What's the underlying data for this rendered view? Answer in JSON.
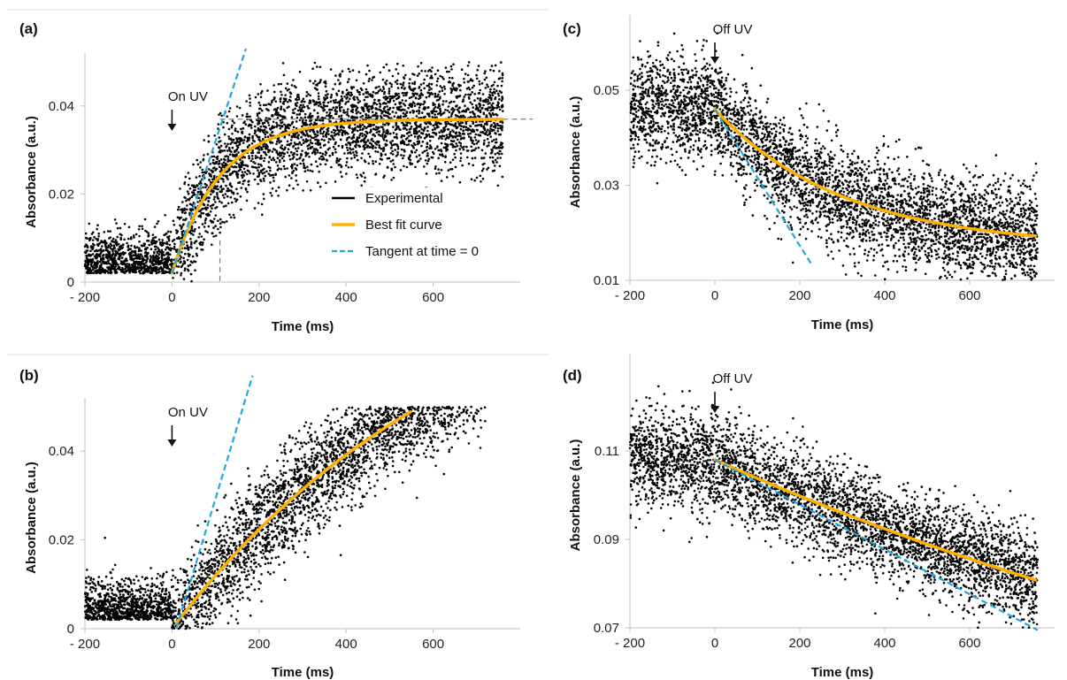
{
  "chart_data": [
    {
      "panel": "(a)",
      "type": "scatter",
      "xlabel": "Time (ms)",
      "ylabel": "Absorbance (a.u.)",
      "xlim": [
        -200,
        800
      ],
      "ylim": [
        0,
        0.05
      ],
      "xticks": [
        "- 200",
        "0",
        "200",
        "400",
        "600"
      ],
      "xtick_values": [
        -200,
        0,
        200,
        400,
        600
      ],
      "yticks": [
        "0",
        "0.02",
        "0.04"
      ],
      "ytick_values": [
        0,
        0.02,
        0.04
      ],
      "annotation": {
        "text": "On UV",
        "x": 0
      },
      "legend": {
        "placement": "right-center",
        "entries": [
          "Experimental",
          "Best fit curve",
          "Tangent at time = 0"
        ]
      },
      "guide_lines": {
        "plateau_y": 0.037,
        "tau_x": 110
      },
      "series": [
        {
          "name": "Experimental",
          "kind": "scatter",
          "color": "#000000",
          "baseline": 0.002,
          "noise": 0.006
        },
        {
          "name": "Best fit curve",
          "kind": "line",
          "color": "#FFB000",
          "model": "rise",
          "A": 0.035,
          "tau": 110,
          "y0": 0.002,
          "x_range": [
            0,
            760
          ]
        },
        {
          "name": "Tangent at time = 0",
          "kind": "line",
          "dashed": true,
          "color": "#1FA5E0",
          "x_range": [
            0,
            170
          ],
          "y_range": [
            0.002,
            0.053
          ]
        }
      ]
    },
    {
      "panel": "(b)",
      "type": "scatter",
      "xlabel": "Time (ms)",
      "ylabel": "Absorbance (a.u.)",
      "xlim": [
        -200,
        800
      ],
      "ylim": [
        0,
        0.05
      ],
      "xticks": [
        "- 200",
        "0",
        "200",
        "400",
        "600"
      ],
      "xtick_values": [
        -200,
        0,
        200,
        400,
        600
      ],
      "yticks": [
        "0",
        "0.02",
        "0.04"
      ],
      "ytick_values": [
        0,
        0.02,
        0.04
      ],
      "annotation": {
        "text": "On UV",
        "x": 0
      },
      "series": [
        {
          "name": "Experimental",
          "kind": "scatter",
          "color": "#000000",
          "baseline": 0.002,
          "noise": 0.006,
          "x_max": 720
        },
        {
          "name": "Best fit curve",
          "kind": "line",
          "color": "#FFB000",
          "model": "rise",
          "A": 0.09,
          "tau": 700,
          "y0": 0.0,
          "x_range": [
            10,
            548
          ]
        },
        {
          "name": "Tangent at time = 0",
          "kind": "line",
          "dashed": true,
          "color": "#1FA5E0",
          "x_range": [
            10,
            185
          ],
          "y_range": [
            0.0,
            0.057
          ]
        }
      ]
    },
    {
      "panel": "(c)",
      "type": "scatter",
      "xlabel": "Time (ms)",
      "ylabel": "Absorbance (a.u.)",
      "xlim": [
        -200,
        800
      ],
      "ylim": [
        0.01,
        0.064
      ],
      "xticks": [
        "- 200",
        "0",
        "200",
        "400",
        "600"
      ],
      "xtick_values": [
        -200,
        0,
        200,
        400,
        600
      ],
      "yticks": [
        "0.01",
        "0.03",
        "0.05"
      ],
      "ytick_values": [
        0.01,
        0.03,
        0.05
      ],
      "annotation": {
        "text": "Off UV",
        "x": 0
      },
      "series": [
        {
          "name": "Experimental",
          "kind": "scatter",
          "color": "#000000",
          "baseline": 0.046,
          "noise": 0.0055
        },
        {
          "name": "Best fit curve",
          "kind": "line",
          "color": "#FFB000",
          "model": "decay",
          "A": 0.029,
          "tau": 300,
          "y0": 0.046,
          "x_range": [
            0,
            755
          ]
        },
        {
          "name": "Tangent at time = 0",
          "kind": "line",
          "dashed": true,
          "color": "#1FA5E0",
          "x_range": [
            0,
            230
          ],
          "y_range": [
            0.046,
            0.013
          ]
        }
      ]
    },
    {
      "panel": "(d)",
      "type": "scatter",
      "xlabel": "Time (ms)",
      "ylabel": "Absorbance (a.u.)",
      "xlim": [
        -200,
        800
      ],
      "ylim": [
        0.07,
        0.13
      ],
      "xticks": [
        "- 200",
        "0",
        "200",
        "400",
        "600"
      ],
      "xtick_values": [
        -200,
        0,
        200,
        400,
        600
      ],
      "yticks": [
        "0.07",
        "0.09",
        "0.11"
      ],
      "ytick_values": [
        0.07,
        0.09,
        0.11
      ],
      "annotation": {
        "text": "Off UV",
        "x": 0
      },
      "series": [
        {
          "name": "Experimental",
          "kind": "scatter",
          "color": "#000000",
          "baseline": 0.108,
          "noise": 0.0055
        },
        {
          "name": "Best fit curve",
          "kind": "line",
          "color": "#FFB000",
          "model": "decay",
          "A": 0.09,
          "tau": 2100,
          "y0": 0.108,
          "x_range": [
            0,
            755
          ]
        },
        {
          "name": "Tangent at time = 0",
          "kind": "line",
          "dashed": true,
          "color": "#1FA5E0",
          "x_range": [
            0,
            760
          ],
          "y_range": [
            0.108,
            0.0695
          ]
        }
      ]
    }
  ]
}
